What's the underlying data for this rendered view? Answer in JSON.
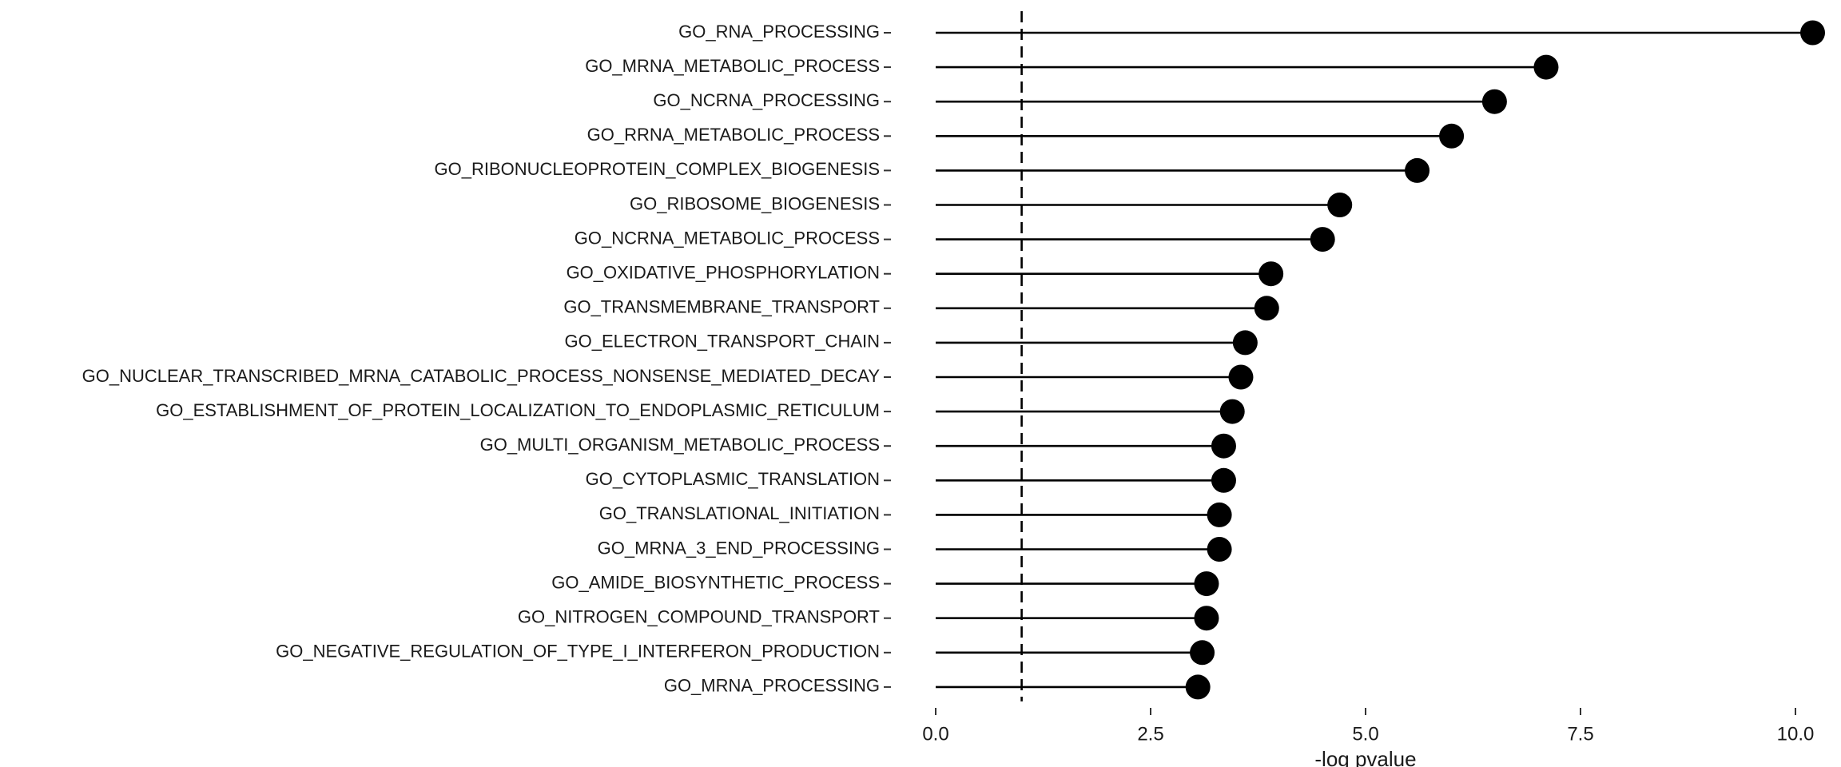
{
  "chart_data": {
    "type": "lollipop",
    "title": "",
    "xlabel": "-log pvalue",
    "ylabel": "",
    "xlim": [
      0,
      10.2
    ],
    "xticks": [
      0.0,
      2.5,
      5.0,
      7.5,
      10.0
    ],
    "xtick_labels": [
      "0.0",
      "2.5",
      "5.0",
      "7.5",
      "10.0"
    ],
    "threshold_line": {
      "x": 1.0,
      "style": "dashed"
    },
    "grid": false,
    "legend": "none",
    "colors": {
      "point": "#000000",
      "stem": "#000000",
      "text": "#1a1a1a"
    },
    "categories": [
      "GO_RNA_PROCESSING",
      "GO_MRNA_METABOLIC_PROCESS",
      "GO_NCRNA_PROCESSING",
      "GO_RRNA_METABOLIC_PROCESS",
      "GO_RIBONUCLEOPROTEIN_COMPLEX_BIOGENESIS",
      "GO_RIBOSOME_BIOGENESIS",
      "GO_NCRNA_METABOLIC_PROCESS",
      "GO_OXIDATIVE_PHOSPHORYLATION",
      "GO_TRANSMEMBRANE_TRANSPORT",
      "GO_ELECTRON_TRANSPORT_CHAIN",
      "GO_NUCLEAR_TRANSCRIBED_MRNA_CATABOLIC_PROCESS_NONSENSE_MEDIATED_DECAY",
      "GO_ESTABLISHMENT_OF_PROTEIN_LOCALIZATION_TO_ENDOPLASMIC_RETICULUM",
      "GO_MULTI_ORGANISM_METABOLIC_PROCESS",
      "GO_CYTOPLASMIC_TRANSLATION",
      "GO_TRANSLATIONAL_INITIATION",
      "GO_MRNA_3_END_PROCESSING",
      "GO_AMIDE_BIOSYNTHETIC_PROCESS",
      "GO_NITROGEN_COMPOUND_TRANSPORT",
      "GO_NEGATIVE_REGULATION_OF_TYPE_I_INTERFERON_PRODUCTION",
      "GO_MRNA_PROCESSING"
    ],
    "values": [
      10.2,
      7.1,
      6.5,
      6.0,
      5.6,
      4.7,
      4.5,
      3.9,
      3.85,
      3.6,
      3.55,
      3.45,
      3.35,
      3.35,
      3.3,
      3.3,
      3.15,
      3.15,
      3.1,
      3.05
    ]
  }
}
